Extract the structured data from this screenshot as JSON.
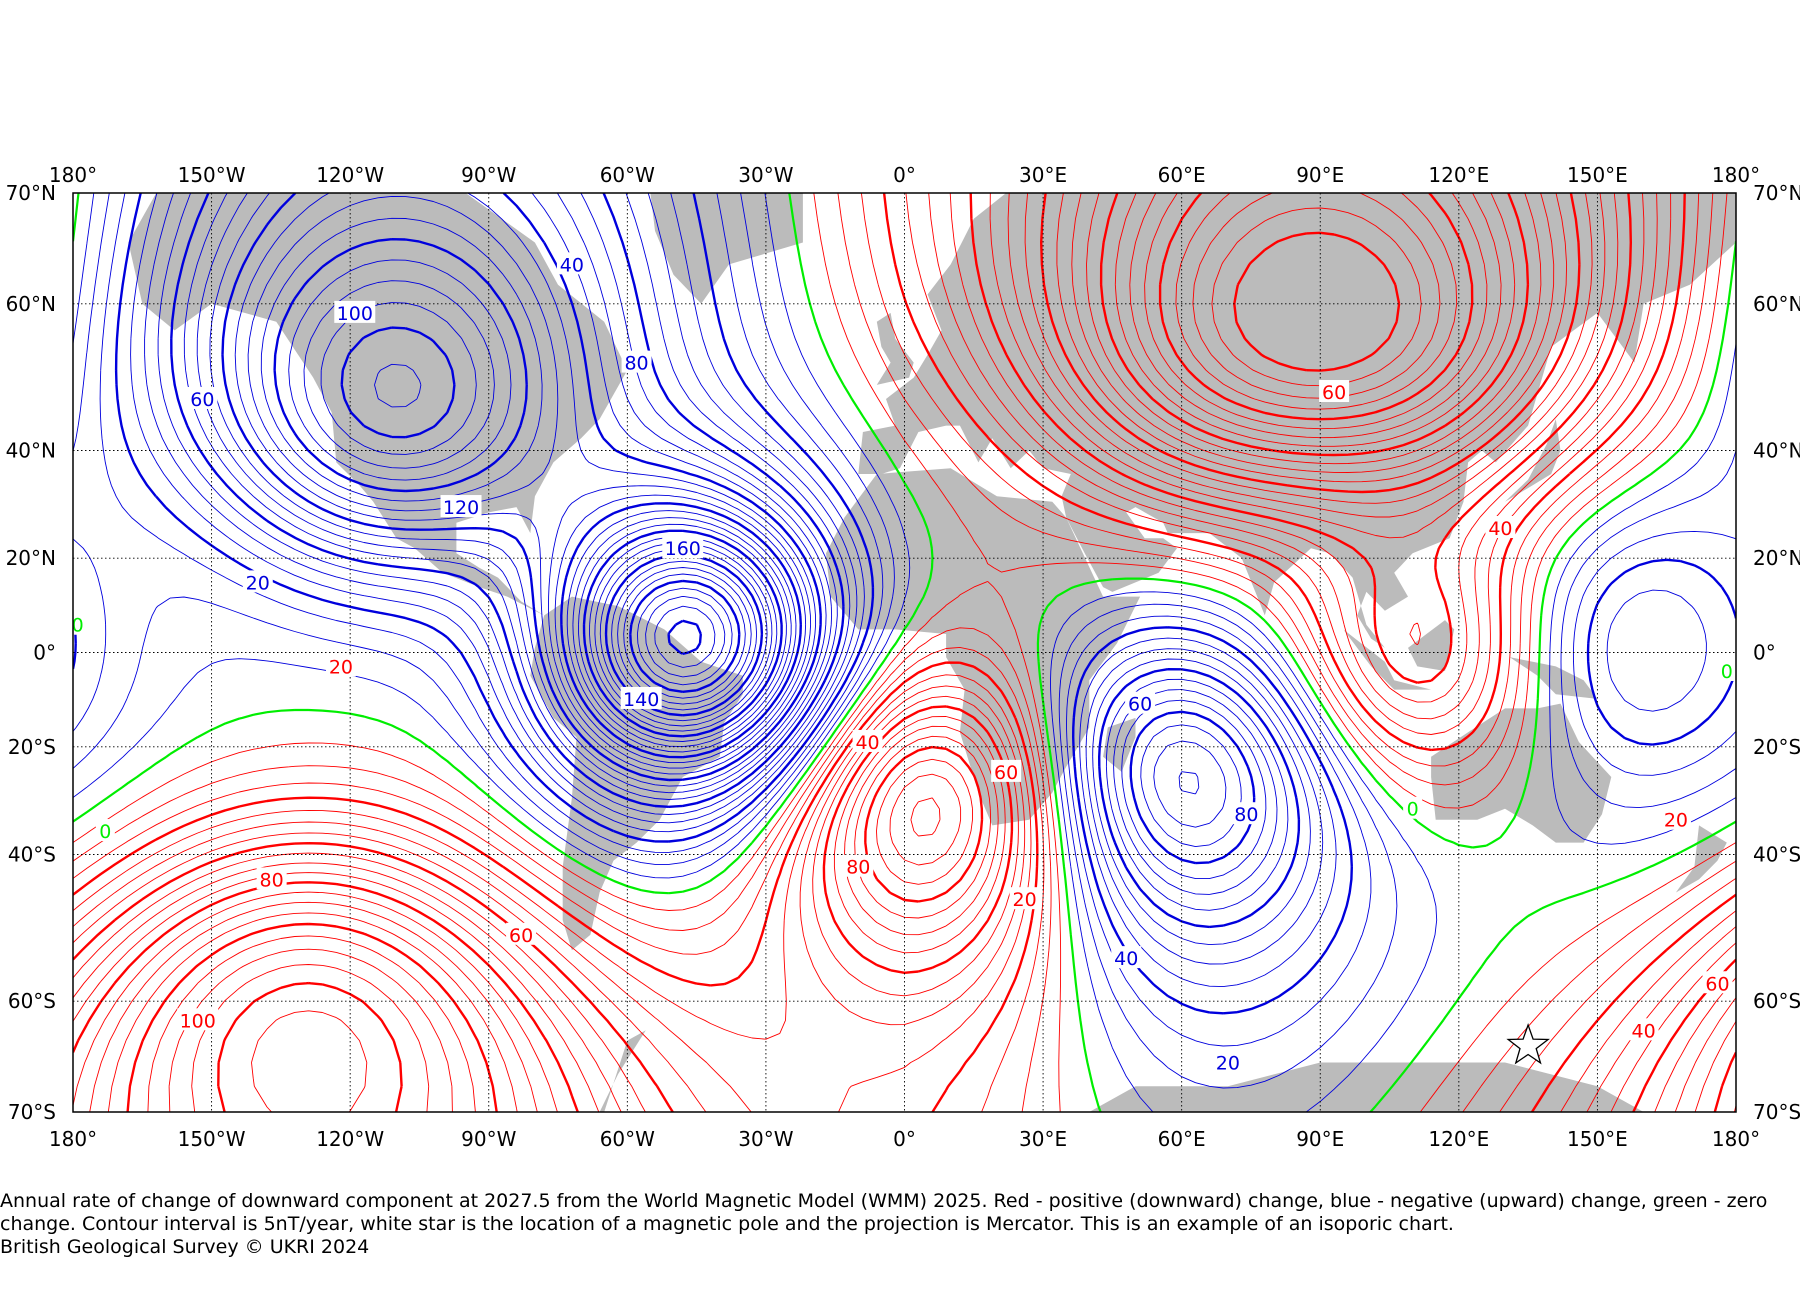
{
  "map": {
    "projection": "Mercator",
    "lon_range": [
      -180,
      180
    ],
    "lat_range": [
      -70,
      70
    ],
    "grid": true,
    "colors": {
      "positive": "#ff0000",
      "negative": "#0000dd",
      "zero": "#00ee00",
      "land": "#bbbbbb",
      "grid": "#000000"
    },
    "lon_ticks": [
      {
        "lon": -180,
        "label": "180°"
      },
      {
        "lon": -150,
        "label": "150°W"
      },
      {
        "lon": -120,
        "label": "120°W"
      },
      {
        "lon": -90,
        "label": "90°W"
      },
      {
        "lon": -60,
        "label": "60°W"
      },
      {
        "lon": -30,
        "label": "30°W"
      },
      {
        "lon": 0,
        "label": "0°"
      },
      {
        "lon": 30,
        "label": "30°E"
      },
      {
        "lon": 60,
        "label": "60°E"
      },
      {
        "lon": 90,
        "label": "90°E"
      },
      {
        "lon": 120,
        "label": "120°E"
      },
      {
        "lon": 150,
        "label": "150°E"
      },
      {
        "lon": 180,
        "label": "180°"
      }
    ],
    "lat_ticks": [
      {
        "lat": 70,
        "label": "70°N"
      },
      {
        "lat": 60,
        "label": "60°N"
      },
      {
        "lat": 40,
        "label": "40°N"
      },
      {
        "lat": 20,
        "label": "20°N"
      },
      {
        "lat": 0,
        "label": "0°"
      },
      {
        "lat": -20,
        "label": "20°S"
      },
      {
        "lat": -40,
        "label": "40°S"
      },
      {
        "lat": -60,
        "label": "60°S"
      },
      {
        "lat": -70,
        "label": "70°S"
      }
    ],
    "contour_interval": 5,
    "field_centers": [
      {
        "lon": -47,
        "lat": 3,
        "value": -165,
        "type": "blue"
      },
      {
        "lon": -110,
        "lat": 50,
        "value": -105,
        "type": "blue"
      },
      {
        "lon": 58,
        "lat": -28,
        "value": -85,
        "type": "blue"
      },
      {
        "lon": 156,
        "lat": 1,
        "value": -30,
        "type": "blue"
      },
      {
        "lon": 68,
        "lat": 57,
        "value": 80,
        "type": "red"
      },
      {
        "lon": 115,
        "lat": 58,
        "value": 75,
        "type": "red"
      },
      {
        "lon": 112,
        "lat": 0,
        "value": 50,
        "type": "red"
      },
      {
        "lon": 8,
        "lat": -33,
        "value": 85,
        "type": "red"
      },
      {
        "lon": -130,
        "lat": -66,
        "value": 110,
        "type": "red"
      }
    ],
    "contour_labels": [
      {
        "text": "40",
        "lon": -72,
        "lat": 64,
        "type": "blue"
      },
      {
        "text": "100",
        "lon": -119,
        "lat": 59,
        "type": "blue"
      },
      {
        "text": "80",
        "lon": -58,
        "lat": 53,
        "type": "blue"
      },
      {
        "text": "60",
        "lon": -152,
        "lat": 48,
        "type": "blue"
      },
      {
        "text": "120",
        "lon": -96,
        "lat": 30,
        "type": "blue"
      },
      {
        "text": "160",
        "lon": -48,
        "lat": 22,
        "type": "blue"
      },
      {
        "text": "20",
        "lon": -140,
        "lat": 15,
        "type": "blue"
      },
      {
        "text": "140",
        "lon": -57,
        "lat": -10,
        "type": "blue"
      },
      {
        "text": "60",
        "lon": 51,
        "lat": -11,
        "type": "blue"
      },
      {
        "text": "80",
        "lon": 74,
        "lat": -33,
        "type": "blue"
      },
      {
        "text": "40",
        "lon": 48,
        "lat": -55,
        "type": "blue"
      },
      {
        "text": "20",
        "lon": 70,
        "lat": -66,
        "type": "blue"
      },
      {
        "text": "60",
        "lon": 93,
        "lat": 49,
        "type": "red"
      },
      {
        "text": "40",
        "lon": 129,
        "lat": 26,
        "type": "red"
      },
      {
        "text": "20",
        "lon": -122,
        "lat": -3,
        "type": "red"
      },
      {
        "text": "40",
        "lon": -8,
        "lat": -19,
        "type": "red"
      },
      {
        "text": "60",
        "lon": 22,
        "lat": -25,
        "type": "red"
      },
      {
        "text": "80",
        "lon": -10,
        "lat": -42,
        "type": "red"
      },
      {
        "text": "20",
        "lon": 26,
        "lat": -47,
        "type": "red"
      },
      {
        "text": "80",
        "lon": -137,
        "lat": -44,
        "type": "red"
      },
      {
        "text": "60",
        "lon": -83,
        "lat": -52,
        "type": "red"
      },
      {
        "text": "100",
        "lon": -153,
        "lat": -62,
        "type": "red"
      },
      {
        "text": "20",
        "lon": 167,
        "lat": -34,
        "type": "red"
      },
      {
        "text": "40",
        "lon": 160,
        "lat": -63,
        "type": "red"
      },
      {
        "text": "60",
        "lon": 176,
        "lat": -58,
        "type": "red"
      },
      {
        "text": "0",
        "lon": -173,
        "lat": -36,
        "type": "zero"
      },
      {
        "text": "0",
        "lon": -179,
        "lat": 6,
        "type": "zero"
      },
      {
        "text": "0",
        "lon": 178,
        "lat": -4,
        "type": "zero"
      },
      {
        "text": "0",
        "lon": 110,
        "lat": -32,
        "type": "zero"
      }
    ],
    "pole_marker": {
      "lon": 135,
      "lat": -64.5,
      "icon": "white-star-icon"
    }
  },
  "caption": {
    "line1": "Annual rate of change of downward component at 2027.5 from the World Magnetic Model (WMM) 2025. Red - positive (downward) change, blue - negative (upward) change, green - zero change. Contour interval is 5nT/year, white star is the location of a magnetic pole and the projection is Mercator. This is an example of an isoporic chart.",
    "line2": "British Geological Survey © UKRI 2024"
  }
}
